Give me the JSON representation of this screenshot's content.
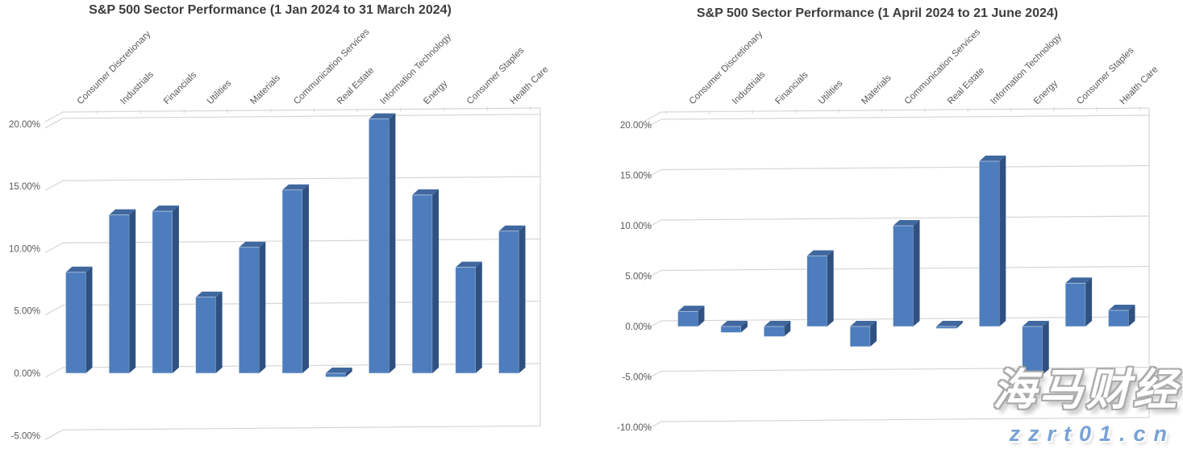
{
  "colors": {
    "bar_front": "#4d7dbd",
    "bar_top": "#40689f",
    "bar_side": "#2f5181",
    "bar_highlight": "#dce6f2",
    "gridline": "#d6d6d6",
    "axis_text": "#595959",
    "title_text": "#3d3d3d",
    "background": "#ffffff",
    "watermark_blue": "#79a2d5"
  },
  "watermark": {
    "line1": "海马财经",
    "line2": "zzrt01.cn"
  },
  "chart_data": [
    {
      "type": "bar",
      "style": "3d-column",
      "title": "S&P 500 Sector Performance (1 Jan 2024 to 31 March 2024)",
      "unit": "percent",
      "categories": [
        "Consumer Discretionary",
        "Industrials",
        "Financials",
        "Utilities",
        "Materials",
        "Communication Services",
        "Real Estate",
        "Information Technology",
        "Energy",
        "Consumer Staples",
        "Health Care"
      ],
      "values": [
        8.1,
        12.7,
        13.0,
        6.1,
        10.1,
        14.7,
        -0.3,
        20.4,
        14.3,
        8.5,
        11.4
      ],
      "yticks": [
        "20.00%",
        "15.00%",
        "10.00%",
        "5.00%",
        "0.00%",
        "-5.00%"
      ],
      "ytick_values": [
        20,
        15,
        10,
        5,
        0,
        -5
      ],
      "ylim": [
        -5,
        20
      ],
      "xlabel": "",
      "ylabel": "",
      "grid": true,
      "legend": false
    },
    {
      "type": "bar",
      "style": "3d-column",
      "title": "S&P 500 Sector Performance (1 April 2024 to 21 June 2024)",
      "unit": "percent",
      "categories": [
        "Consumer Discretionary",
        "Industrials",
        "Financials",
        "Utilities",
        "Materials",
        "Communication Services",
        "Real Estate",
        "Information Technology",
        "Energy",
        "Consumer Staples",
        "Health Care"
      ],
      "values": [
        1.5,
        -0.6,
        -1.0,
        7.0,
        -2.0,
        10.0,
        -0.2,
        16.4,
        -4.8,
        4.3,
        1.6
      ],
      "yticks": [
        "20.00%",
        "15.00%",
        "10.00%",
        "5.00%",
        "0.00%",
        "-5.00%",
        "-10.00%"
      ],
      "ytick_values": [
        20,
        15,
        10,
        5,
        0,
        -5,
        -10
      ],
      "ylim": [
        -10,
        20
      ],
      "xlabel": "",
      "ylabel": "",
      "grid": true,
      "legend": false
    }
  ]
}
